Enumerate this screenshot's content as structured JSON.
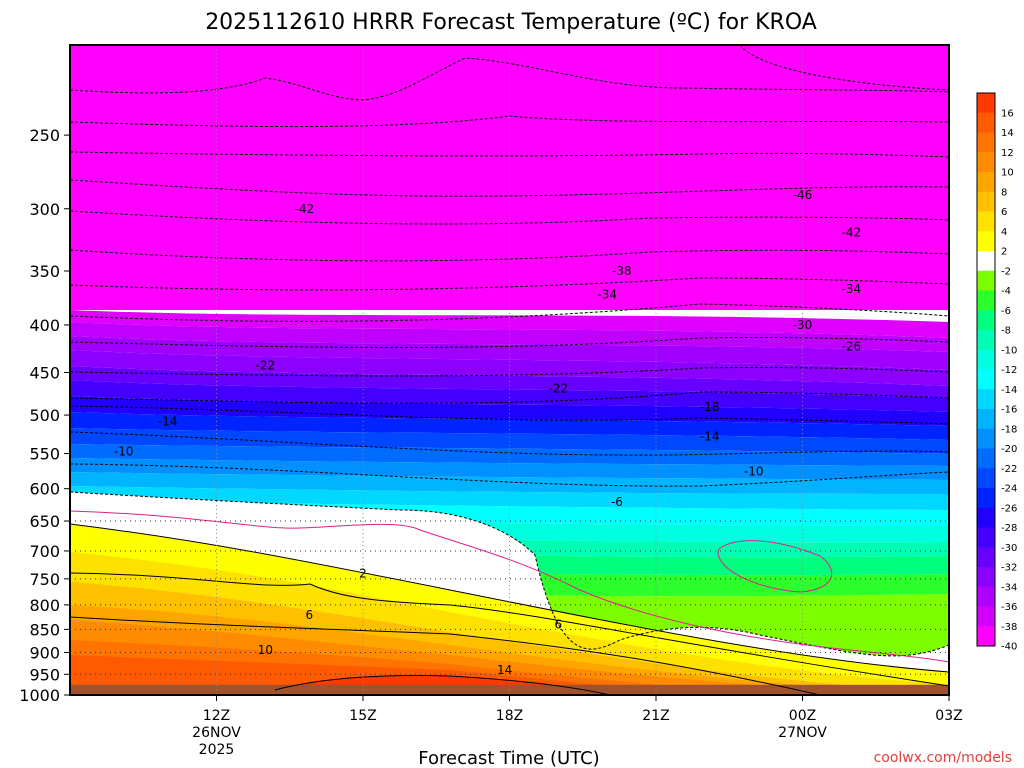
{
  "chart_data": {
    "type": "heatmap",
    "title": "2025112610 HRRR Forecast Temperature (ºC) for KROA",
    "xlabel": "Forecast Time (UTC)",
    "ylabel": "",
    "credit": "coolwx.com/models",
    "x_hours_range": [
      9,
      27
    ],
    "y_range_hpa": [
      1000,
      200
    ],
    "y_ticks": [
      "250",
      "300",
      "350",
      "400",
      "450",
      "500",
      "550",
      "600",
      "650",
      "700",
      "750",
      "800",
      "850",
      "900",
      "950",
      "1000"
    ],
    "x_ticks": [
      {
        "hour": 12,
        "label": "12Z",
        "sub1": "26NOV",
        "sub2": "2025"
      },
      {
        "hour": 15,
        "label": "15Z",
        "sub1": "",
        "sub2": ""
      },
      {
        "hour": 18,
        "label": "18Z",
        "sub1": "",
        "sub2": ""
      },
      {
        "hour": 21,
        "label": "21Z",
        "sub1": "",
        "sub2": ""
      },
      {
        "hour": 24,
        "label": "00Z",
        "sub1": "27NOV",
        "sub2": ""
      },
      {
        "hour": 27,
        "label": "03Z",
        "sub1": "",
        "sub2": ""
      }
    ],
    "grid": true,
    "colorbar": {
      "location": "right",
      "levels": [
        16,
        14,
        12,
        10,
        8,
        6,
        4,
        2,
        -2,
        -4,
        -6,
        -8,
        -10,
        -12,
        -14,
        -16,
        -18,
        -20,
        -22,
        -24,
        -26,
        -28,
        -30,
        -32,
        -34,
        -36,
        -38,
        -40
      ],
      "labels": [
        "16",
        "14",
        "12",
        "10",
        "8",
        "6",
        "4",
        "2",
        "-2",
        "-4",
        "-6",
        "-8",
        "-10",
        "-12",
        "-14",
        "-16",
        "-18",
        "-20",
        "-22",
        "-24",
        "-26",
        "-28",
        "-30",
        "-32",
        "-34",
        "-36",
        "-38",
        "-40"
      ],
      "colors": [
        "#ff3a00",
        "#ff5a00",
        "#ff7400",
        "#ff8c00",
        "#ffa500",
        "#ffc000",
        "#ffe100",
        "#ffff00",
        "#ffffff",
        "#7dff00",
        "#2cff2c",
        "#00ff7f",
        "#00ffb4",
        "#00ffe0",
        "#00ffff",
        "#00d8ff",
        "#00b4ff",
        "#0090ff",
        "#006cff",
        "#0048ff",
        "#0024ff",
        "#2000ff",
        "#4400ff",
        "#6800ff",
        "#8c00ff",
        "#b000ff",
        "#d400ff",
        "#ff00ff"
      ]
    },
    "temperature_profile_at_12Z": [
      {
        "hpa": 975,
        "t": 13.5
      },
      {
        "hpa": 950,
        "t": 12.5
      },
      {
        "hpa": 900,
        "t": 10
      },
      {
        "hpa": 850,
        "t": 7.5
      },
      {
        "hpa": 800,
        "t": 5
      },
      {
        "hpa": 750,
        "t": 3
      },
      {
        "hpa": 700,
        "t": 1.5
      },
      {
        "hpa": 650,
        "t": -1
      },
      {
        "hpa": 600,
        "t": -6
      },
      {
        "hpa": 550,
        "t": -10
      },
      {
        "hpa": 500,
        "t": -14
      },
      {
        "hpa": 450,
        "t": -20
      },
      {
        "hpa": 400,
        "t": -26
      },
      {
        "hpa": 350,
        "t": -35
      },
      {
        "hpa": 300,
        "t": -42
      },
      {
        "hpa": 250,
        "t": -48
      },
      {
        "hpa": 200,
        "t": -50
      }
    ],
    "contour_labels": [
      {
        "text": "-42",
        "hour": 13.8,
        "hpa": 300
      },
      {
        "text": "-46",
        "hour": 24,
        "hpa": 290
      },
      {
        "text": "-42",
        "hour": 25,
        "hpa": 318
      },
      {
        "text": "-38",
        "hour": 20.3,
        "hpa": 350
      },
      {
        "text": "-34",
        "hour": 20,
        "hpa": 371
      },
      {
        "text": "-34",
        "hour": 25,
        "hpa": 366
      },
      {
        "text": "-30",
        "hour": 24,
        "hpa": 400
      },
      {
        "text": "-26",
        "hour": 25,
        "hpa": 422
      },
      {
        "text": "-22",
        "hour": 13,
        "hpa": 442
      },
      {
        "text": "-22",
        "hour": 19,
        "hpa": 468
      },
      {
        "text": "-18",
        "hour": 22.1,
        "hpa": 490
      },
      {
        "text": "-14",
        "hour": 11,
        "hpa": 508
      },
      {
        "text": "-14",
        "hour": 22.1,
        "hpa": 527
      },
      {
        "text": "-10",
        "hour": 10.1,
        "hpa": 547
      },
      {
        "text": "-10",
        "hour": 23,
        "hpa": 575
      },
      {
        "text": "-6",
        "hour": 20.2,
        "hpa": 620
      },
      {
        "text": "2",
        "hour": 15,
        "hpa": 740
      },
      {
        "text": "6",
        "hour": 13.9,
        "hpa": 820
      },
      {
        "text": "6",
        "hour": 19,
        "hpa": 840
      },
      {
        "text": "10",
        "hour": 13,
        "hpa": 895
      },
      {
        "text": "14",
        "hour": 17.9,
        "hpa": 940
      }
    ],
    "regions": [
      {
        "name": "ground",
        "below_hpa": 975,
        "color": "#a0522d"
      }
    ]
  }
}
